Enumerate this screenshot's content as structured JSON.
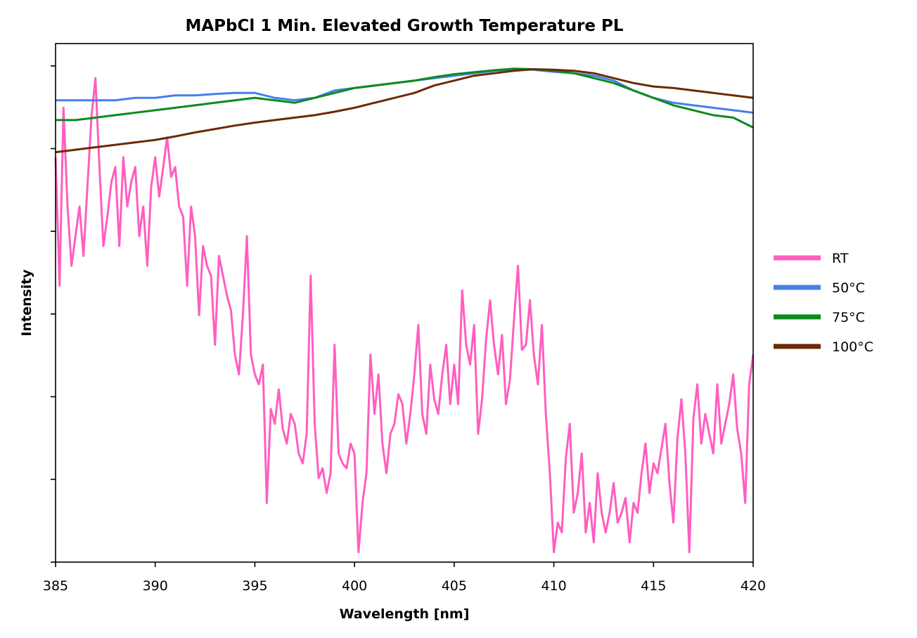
{
  "chart_data": {
    "type": "line",
    "title": "MAPbCl 1 Min. Elevated Growth Temperature PL",
    "xlabel": "Wavelength [nm]",
    "ylabel": "Intensity",
    "xlim": [
      385,
      420
    ],
    "ylim": [
      0,
      1.05
    ],
    "x_ticks": [
      385,
      390,
      395,
      400,
      405,
      410,
      415,
      420
    ],
    "x_tick_labels": [
      "385",
      "390",
      "395",
      "400",
      "405",
      "410",
      "415",
      "420"
    ],
    "y_tick_labels_visible": false,
    "y_tick_count": 6,
    "grid": false,
    "legend_position": "right-outside",
    "series": [
      {
        "name": "RT",
        "color": "#ff5ebf",
        "points": [
          [
            385.0,
            0.82
          ],
          [
            385.2,
            0.56
          ],
          [
            385.4,
            0.92
          ],
          [
            385.6,
            0.72
          ],
          [
            385.8,
            0.6
          ],
          [
            386.0,
            0.66
          ],
          [
            386.2,
            0.72
          ],
          [
            386.4,
            0.62
          ],
          [
            386.6,
            0.76
          ],
          [
            386.8,
            0.9
          ],
          [
            387.0,
            0.98
          ],
          [
            387.2,
            0.8
          ],
          [
            387.4,
            0.64
          ],
          [
            387.6,
            0.7
          ],
          [
            387.8,
            0.77
          ],
          [
            388.0,
            0.8
          ],
          [
            388.2,
            0.64
          ],
          [
            388.4,
            0.82
          ],
          [
            388.6,
            0.72
          ],
          [
            388.8,
            0.77
          ],
          [
            389.0,
            0.8
          ],
          [
            389.2,
            0.66
          ],
          [
            389.4,
            0.72
          ],
          [
            389.6,
            0.6
          ],
          [
            389.8,
            0.76
          ],
          [
            390.0,
            0.82
          ],
          [
            390.2,
            0.74
          ],
          [
            390.4,
            0.8
          ],
          [
            390.6,
            0.86
          ],
          [
            390.8,
            0.78
          ],
          [
            391.0,
            0.8
          ],
          [
            391.2,
            0.72
          ],
          [
            391.4,
            0.7
          ],
          [
            391.6,
            0.56
          ],
          [
            391.8,
            0.72
          ],
          [
            392.0,
            0.66
          ],
          [
            392.2,
            0.5
          ],
          [
            392.4,
            0.64
          ],
          [
            392.6,
            0.6
          ],
          [
            392.8,
            0.58
          ],
          [
            393.0,
            0.44
          ],
          [
            393.2,
            0.62
          ],
          [
            393.4,
            0.58
          ],
          [
            393.6,
            0.54
          ],
          [
            393.8,
            0.51
          ],
          [
            394.0,
            0.42
          ],
          [
            394.2,
            0.38
          ],
          [
            394.4,
            0.5
          ],
          [
            394.6,
            0.66
          ],
          [
            394.8,
            0.42
          ],
          [
            395.0,
            0.38
          ],
          [
            395.2,
            0.36
          ],
          [
            395.4,
            0.4
          ],
          [
            395.6,
            0.12
          ],
          [
            395.8,
            0.31
          ],
          [
            396.0,
            0.28
          ],
          [
            396.2,
            0.35
          ],
          [
            396.4,
            0.27
          ],
          [
            396.6,
            0.24
          ],
          [
            396.8,
            0.3
          ],
          [
            397.0,
            0.28
          ],
          [
            397.2,
            0.22
          ],
          [
            397.4,
            0.2
          ],
          [
            397.6,
            0.26
          ],
          [
            397.8,
            0.58
          ],
          [
            398.0,
            0.28
          ],
          [
            398.2,
            0.17
          ],
          [
            398.4,
            0.19
          ],
          [
            398.6,
            0.14
          ],
          [
            398.8,
            0.18
          ],
          [
            399.0,
            0.44
          ],
          [
            399.2,
            0.22
          ],
          [
            399.4,
            0.2
          ],
          [
            399.6,
            0.19
          ],
          [
            399.8,
            0.24
          ],
          [
            400.0,
            0.22
          ],
          [
            400.2,
            0.02
          ],
          [
            400.4,
            0.12
          ],
          [
            400.6,
            0.18
          ],
          [
            400.8,
            0.42
          ],
          [
            401.0,
            0.3
          ],
          [
            401.2,
            0.38
          ],
          [
            401.4,
            0.24
          ],
          [
            401.6,
            0.18
          ],
          [
            401.8,
            0.26
          ],
          [
            402.0,
            0.28
          ],
          [
            402.2,
            0.34
          ],
          [
            402.4,
            0.32
          ],
          [
            402.6,
            0.24
          ],
          [
            402.8,
            0.3
          ],
          [
            403.0,
            0.38
          ],
          [
            403.2,
            0.48
          ],
          [
            403.4,
            0.3
          ],
          [
            403.6,
            0.26
          ],
          [
            403.8,
            0.4
          ],
          [
            404.0,
            0.33
          ],
          [
            404.2,
            0.3
          ],
          [
            404.4,
            0.38
          ],
          [
            404.6,
            0.44
          ],
          [
            404.8,
            0.32
          ],
          [
            405.0,
            0.4
          ],
          [
            405.2,
            0.32
          ],
          [
            405.4,
            0.55
          ],
          [
            405.6,
            0.44
          ],
          [
            405.8,
            0.4
          ],
          [
            406.0,
            0.48
          ],
          [
            406.2,
            0.26
          ],
          [
            406.4,
            0.33
          ],
          [
            406.6,
            0.45
          ],
          [
            406.8,
            0.53
          ],
          [
            407.0,
            0.44
          ],
          [
            407.2,
            0.38
          ],
          [
            407.4,
            0.46
          ],
          [
            407.6,
            0.32
          ],
          [
            407.8,
            0.37
          ],
          [
            408.0,
            0.49
          ],
          [
            408.2,
            0.6
          ],
          [
            408.4,
            0.43
          ],
          [
            408.6,
            0.44
          ],
          [
            408.8,
            0.53
          ],
          [
            409.0,
            0.42
          ],
          [
            409.2,
            0.36
          ],
          [
            409.4,
            0.48
          ],
          [
            409.6,
            0.3
          ],
          [
            409.8,
            0.18
          ],
          [
            410.0,
            0.02
          ],
          [
            410.2,
            0.08
          ],
          [
            410.4,
            0.06
          ],
          [
            410.6,
            0.21
          ],
          [
            410.8,
            0.28
          ],
          [
            411.0,
            0.1
          ],
          [
            411.2,
            0.14
          ],
          [
            411.4,
            0.22
          ],
          [
            411.6,
            0.06
          ],
          [
            411.8,
            0.12
          ],
          [
            412.0,
            0.04
          ],
          [
            412.2,
            0.18
          ],
          [
            412.4,
            0.1
          ],
          [
            412.6,
            0.06
          ],
          [
            412.8,
            0.1
          ],
          [
            413.0,
            0.16
          ],
          [
            413.2,
            0.08
          ],
          [
            413.4,
            0.1
          ],
          [
            413.6,
            0.13
          ],
          [
            413.8,
            0.04
          ],
          [
            414.0,
            0.12
          ],
          [
            414.2,
            0.1
          ],
          [
            414.4,
            0.18
          ],
          [
            414.6,
            0.24
          ],
          [
            414.8,
            0.14
          ],
          [
            415.0,
            0.2
          ],
          [
            415.2,
            0.18
          ],
          [
            415.4,
            0.23
          ],
          [
            415.6,
            0.28
          ],
          [
            415.8,
            0.16
          ],
          [
            416.0,
            0.08
          ],
          [
            416.2,
            0.25
          ],
          [
            416.4,
            0.33
          ],
          [
            416.6,
            0.22
          ],
          [
            416.8,
            0.02
          ],
          [
            417.0,
            0.29
          ],
          [
            417.2,
            0.36
          ],
          [
            417.4,
            0.24
          ],
          [
            417.6,
            0.3
          ],
          [
            417.8,
            0.26
          ],
          [
            418.0,
            0.22
          ],
          [
            418.2,
            0.36
          ],
          [
            418.4,
            0.24
          ],
          [
            418.6,
            0.28
          ],
          [
            418.8,
            0.32
          ],
          [
            419.0,
            0.38
          ],
          [
            419.2,
            0.27
          ],
          [
            419.4,
            0.22
          ],
          [
            419.6,
            0.12
          ],
          [
            419.8,
            0.36
          ],
          [
            420.0,
            0.42
          ]
        ]
      },
      {
        "name": "50°C",
        "color": "#4480e8",
        "points": [
          [
            385,
            0.935
          ],
          [
            386,
            0.935
          ],
          [
            387,
            0.935
          ],
          [
            388,
            0.935
          ],
          [
            389,
            0.94
          ],
          [
            390,
            0.94
          ],
          [
            391,
            0.945
          ],
          [
            392,
            0.945
          ],
          [
            393,
            0.948
          ],
          [
            394,
            0.95
          ],
          [
            395,
            0.95
          ],
          [
            396,
            0.94
          ],
          [
            397,
            0.935
          ],
          [
            398,
            0.94
          ],
          [
            399,
            0.955
          ],
          [
            400,
            0.96
          ],
          [
            401,
            0.965
          ],
          [
            402,
            0.97
          ],
          [
            403,
            0.975
          ],
          [
            404,
            0.98
          ],
          [
            405,
            0.985
          ],
          [
            406,
            0.99
          ],
          [
            407,
            0.995
          ],
          [
            408,
            0.998
          ],
          [
            409,
            0.997
          ],
          [
            410,
            0.993
          ],
          [
            411,
            0.99
          ],
          [
            412,
            0.985
          ],
          [
            413,
            0.975
          ],
          [
            414,
            0.955
          ],
          [
            415,
            0.94
          ],
          [
            416,
            0.93
          ],
          [
            417,
            0.925
          ],
          [
            418,
            0.92
          ],
          [
            419,
            0.915
          ],
          [
            420,
            0.91
          ]
        ]
      },
      {
        "name": "75°C",
        "color": "#0b8a1f",
        "points": [
          [
            385,
            0.895
          ],
          [
            386,
            0.895
          ],
          [
            387,
            0.9
          ],
          [
            388,
            0.905
          ],
          [
            389,
            0.91
          ],
          [
            390,
            0.915
          ],
          [
            391,
            0.92
          ],
          [
            392,
            0.925
          ],
          [
            393,
            0.93
          ],
          [
            394,
            0.935
          ],
          [
            395,
            0.94
          ],
          [
            396,
            0.935
          ],
          [
            397,
            0.93
          ],
          [
            398,
            0.94
          ],
          [
            399,
            0.95
          ],
          [
            400,
            0.96
          ],
          [
            401,
            0.965
          ],
          [
            402,
            0.97
          ],
          [
            403,
            0.975
          ],
          [
            404,
            0.982
          ],
          [
            405,
            0.988
          ],
          [
            406,
            0.992
          ],
          [
            407,
            0.996
          ],
          [
            408,
            0.999
          ],
          [
            409,
            0.998
          ],
          [
            410,
            0.995
          ],
          [
            411,
            0.99
          ],
          [
            412,
            0.98
          ],
          [
            413,
            0.97
          ],
          [
            414,
            0.955
          ],
          [
            415,
            0.94
          ],
          [
            416,
            0.925
          ],
          [
            417,
            0.915
          ],
          [
            418,
            0.905
          ],
          [
            419,
            0.9
          ],
          [
            420,
            0.88
          ]
        ]
      },
      {
        "name": "100°C",
        "color": "#6b2a05",
        "points": [
          [
            385,
            0.83
          ],
          [
            386,
            0.835
          ],
          [
            387,
            0.84
          ],
          [
            388,
            0.845
          ],
          [
            389,
            0.85
          ],
          [
            390,
            0.855
          ],
          [
            391,
            0.862
          ],
          [
            392,
            0.87
          ],
          [
            393,
            0.877
          ],
          [
            394,
            0.884
          ],
          [
            395,
            0.89
          ],
          [
            396,
            0.895
          ],
          [
            397,
            0.9
          ],
          [
            398,
            0.905
          ],
          [
            399,
            0.912
          ],
          [
            400,
            0.92
          ],
          [
            401,
            0.93
          ],
          [
            402,
            0.94
          ],
          [
            403,
            0.95
          ],
          [
            404,
            0.965
          ],
          [
            405,
            0.975
          ],
          [
            406,
            0.985
          ],
          [
            407,
            0.99
          ],
          [
            408,
            0.995
          ],
          [
            409,
            0.998
          ],
          [
            410,
            0.997
          ],
          [
            411,
            0.995
          ],
          [
            412,
            0.99
          ],
          [
            413,
            0.98
          ],
          [
            414,
            0.97
          ],
          [
            415,
            0.963
          ],
          [
            416,
            0.96
          ],
          [
            417,
            0.955
          ],
          [
            418,
            0.95
          ],
          [
            419,
            0.945
          ],
          [
            420,
            0.94
          ]
        ]
      }
    ]
  }
}
